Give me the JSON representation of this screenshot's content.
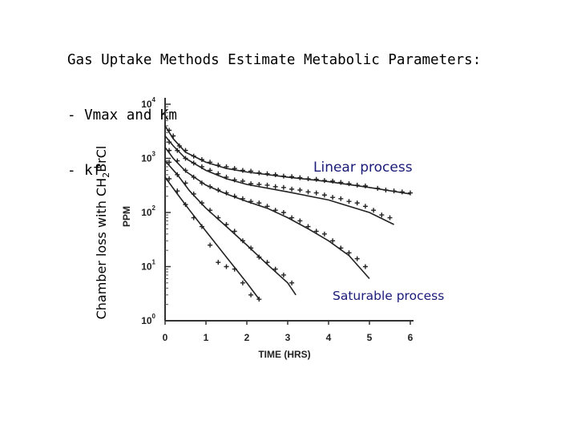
{
  "slide": {
    "title_lines": [
      "Gas Uptake Methods Estimate Metabolic Parameters:",
      "- Vmax and Km",
      "- kf"
    ],
    "side_label_prefix": "Chamber loss with CH",
    "side_label_sub": "2",
    "side_label_suffix": "Br",
    "side_label_end": "Cl",
    "annotation_linear": "Linear process",
    "annotation_saturable": "Saturable process"
  },
  "chart_data": {
    "type": "scatter",
    "xlabel": "TIME (HRS)",
    "ylabel": "PPM",
    "xlim": [
      0,
      6
    ],
    "ylim": [
      1,
      10000
    ],
    "log_y": true,
    "x_ticks": [
      "0",
      "1",
      "2",
      "3",
      "4",
      "5",
      "6"
    ],
    "y_ticks": [
      {
        "base": "10",
        "exp": "4"
      },
      {
        "base": "10",
        "exp": "3"
      },
      {
        "base": "10",
        "exp": "2"
      },
      {
        "base": "10",
        "exp": "1"
      },
      {
        "base": "10",
        "exp": "0"
      }
    ],
    "grid": false,
    "series": [
      {
        "line": [
          [
            0,
            4000
          ],
          [
            0.2,
            2300
          ],
          [
            0.5,
            1300
          ],
          [
            1,
            850
          ],
          [
            1.5,
            650
          ],
          [
            2,
            560
          ],
          [
            3,
            450
          ],
          [
            4,
            370
          ],
          [
            5,
            290
          ],
          [
            6,
            220
          ]
        ],
        "points": [
          [
            0.1,
            3300
          ],
          [
            0.2,
            2600
          ],
          [
            0.35,
            1700
          ],
          [
            0.5,
            1400
          ],
          [
            0.7,
            1100
          ],
          [
            0.9,
            950
          ],
          [
            1.1,
            850
          ],
          [
            1.3,
            750
          ],
          [
            1.5,
            700
          ],
          [
            1.7,
            650
          ],
          [
            1.9,
            600
          ],
          [
            2.1,
            580
          ],
          [
            2.3,
            540
          ],
          [
            2.5,
            520
          ],
          [
            2.7,
            500
          ],
          [
            2.9,
            470
          ],
          [
            3.1,
            460
          ],
          [
            3.3,
            440
          ],
          [
            3.5,
            420
          ],
          [
            3.7,
            410
          ],
          [
            3.9,
            390
          ],
          [
            4.1,
            380
          ],
          [
            4.3,
            360
          ],
          [
            4.5,
            340
          ],
          [
            4.7,
            320
          ],
          [
            4.9,
            310
          ],
          [
            5.2,
            280
          ],
          [
            5.4,
            260
          ],
          [
            5.6,
            250
          ],
          [
            5.8,
            240
          ],
          [
            6.0,
            230
          ]
        ]
      },
      {
        "line": [
          [
            0,
            2600
          ],
          [
            0.2,
            1700
          ],
          [
            0.5,
            1000
          ],
          [
            1,
            600
          ],
          [
            1.5,
            420
          ],
          [
            2,
            330
          ],
          [
            3,
            240
          ],
          [
            4,
            170
          ],
          [
            5,
            100
          ],
          [
            5.6,
            60
          ]
        ],
        "points": [
          [
            0.1,
            2000
          ],
          [
            0.3,
            1400
          ],
          [
            0.5,
            1000
          ],
          [
            0.7,
            820
          ],
          [
            0.9,
            700
          ],
          [
            1.1,
            600
          ],
          [
            1.3,
            520
          ],
          [
            1.5,
            450
          ],
          [
            1.7,
            400
          ],
          [
            1.9,
            380
          ],
          [
            2.1,
            340
          ],
          [
            2.3,
            330
          ],
          [
            2.5,
            320
          ],
          [
            2.7,
            300
          ],
          [
            2.9,
            290
          ],
          [
            3.1,
            270
          ],
          [
            3.3,
            260
          ],
          [
            3.5,
            240
          ],
          [
            3.7,
            230
          ],
          [
            3.9,
            210
          ],
          [
            4.1,
            190
          ],
          [
            4.3,
            180
          ],
          [
            4.5,
            160
          ],
          [
            4.7,
            150
          ],
          [
            4.9,
            130
          ],
          [
            5.1,
            110
          ],
          [
            5.3,
            90
          ],
          [
            5.5,
            80
          ]
        ]
      },
      {
        "line": [
          [
            0,
            1600
          ],
          [
            0.2,
            1000
          ],
          [
            0.5,
            580
          ],
          [
            1,
            320
          ],
          [
            1.5,
            220
          ],
          [
            2,
            160
          ],
          [
            2.5,
            120
          ],
          [
            3,
            80
          ],
          [
            3.5,
            50
          ],
          [
            4,
            30
          ],
          [
            4.5,
            16
          ],
          [
            5,
            6
          ]
        ],
        "points": [
          [
            0.1,
            1400
          ],
          [
            0.3,
            900
          ],
          [
            0.5,
            600
          ],
          [
            0.7,
            450
          ],
          [
            0.9,
            350
          ],
          [
            1.1,
            300
          ],
          [
            1.3,
            260
          ],
          [
            1.5,
            230
          ],
          [
            1.7,
            200
          ],
          [
            1.9,
            180
          ],
          [
            2.1,
            160
          ],
          [
            2.3,
            150
          ],
          [
            2.5,
            130
          ],
          [
            2.7,
            110
          ],
          [
            2.9,
            100
          ],
          [
            3.1,
            80
          ],
          [
            3.3,
            70
          ],
          [
            3.5,
            55
          ],
          [
            3.7,
            45
          ],
          [
            3.9,
            40
          ],
          [
            4.1,
            30
          ],
          [
            4.3,
            22
          ],
          [
            4.5,
            18
          ],
          [
            4.7,
            14
          ],
          [
            4.9,
            10
          ]
        ]
      },
      {
        "line": [
          [
            0,
            900
          ],
          [
            0.3,
            500
          ],
          [
            0.6,
            250
          ],
          [
            1,
            120
          ],
          [
            1.5,
            55
          ],
          [
            2,
            25
          ],
          [
            2.5,
            11
          ],
          [
            3,
            5
          ],
          [
            3.2,
            3
          ]
        ],
        "points": [
          [
            0.1,
            850
          ],
          [
            0.3,
            500
          ],
          [
            0.5,
            350
          ],
          [
            0.7,
            220
          ],
          [
            0.9,
            150
          ],
          [
            1.1,
            110
          ],
          [
            1.3,
            80
          ],
          [
            1.5,
            60
          ],
          [
            1.7,
            45
          ],
          [
            1.9,
            30
          ],
          [
            2.1,
            22
          ],
          [
            2.3,
            15
          ],
          [
            2.5,
            12
          ],
          [
            2.7,
            9
          ],
          [
            2.9,
            7
          ],
          [
            3.1,
            5
          ]
        ]
      },
      {
        "line": [
          [
            0,
            450
          ],
          [
            0.3,
            220
          ],
          [
            0.6,
            110
          ],
          [
            1,
            45
          ],
          [
            1.5,
            15
          ],
          [
            2,
            5
          ],
          [
            2.3,
            2.5
          ]
        ],
        "points": [
          [
            0.1,
            420
          ],
          [
            0.3,
            250
          ],
          [
            0.5,
            140
          ],
          [
            0.7,
            80
          ],
          [
            0.9,
            55
          ],
          [
            1.1,
            25
          ],
          [
            1.3,
            12
          ],
          [
            1.5,
            10
          ],
          [
            1.7,
            9
          ],
          [
            1.9,
            5
          ],
          [
            2.1,
            3
          ],
          [
            2.3,
            2.5
          ]
        ]
      }
    ]
  }
}
